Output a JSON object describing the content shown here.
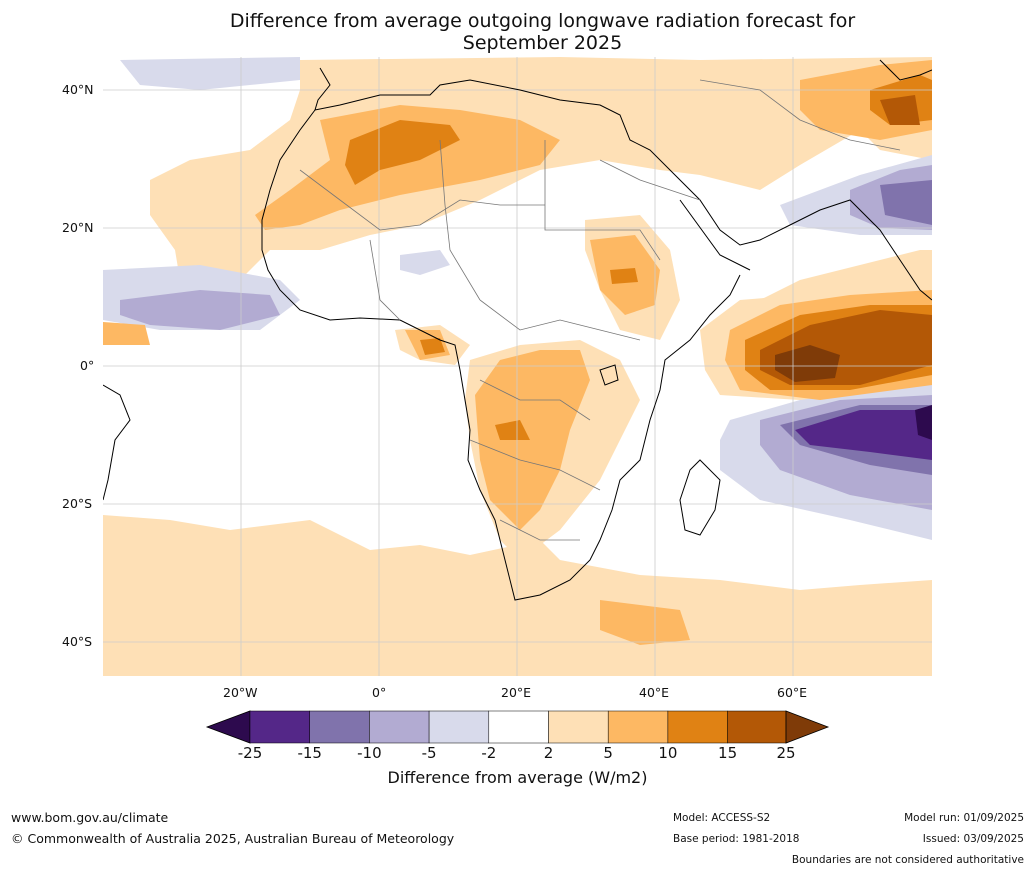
{
  "title": {
    "line1": "Difference from average outgoing longwave radiation forecast for",
    "line2": "September 2025"
  },
  "axes": {
    "lat_labels": [
      "40°N",
      "20°N",
      "0°",
      "20°S",
      "40°S"
    ],
    "lon_labels": [
      "20°W",
      "0°",
      "20°E",
      "40°E",
      "60°E"
    ]
  },
  "colorbar": {
    "title": "Difference from average (W/m2)",
    "tick_labels": [
      "-25",
      "-15",
      "-10",
      "-5",
      "-2",
      "2",
      "5",
      "10",
      "15",
      "25"
    ],
    "colors": [
      "#2d0a4e",
      "#542788",
      "#8073ac",
      "#b2abd2",
      "#d8daeb",
      "#ffffff",
      "#fee0b6",
      "#fdb863",
      "#e08214",
      "#b35806",
      "#7f3b08"
    ]
  },
  "footer": {
    "url": "www.bom.gov.au/climate",
    "copyright": "© Commonwealth of Australia 2025, Australian Bureau of Meteorology",
    "model": "Model: ACCESS-S2",
    "base_period": "Base period: 1981-2018",
    "model_run": "Model run: 01/09/2025",
    "issued": "Issued: 03/09/2025",
    "disclaimer": "Boundaries are not considered authoritative"
  }
}
